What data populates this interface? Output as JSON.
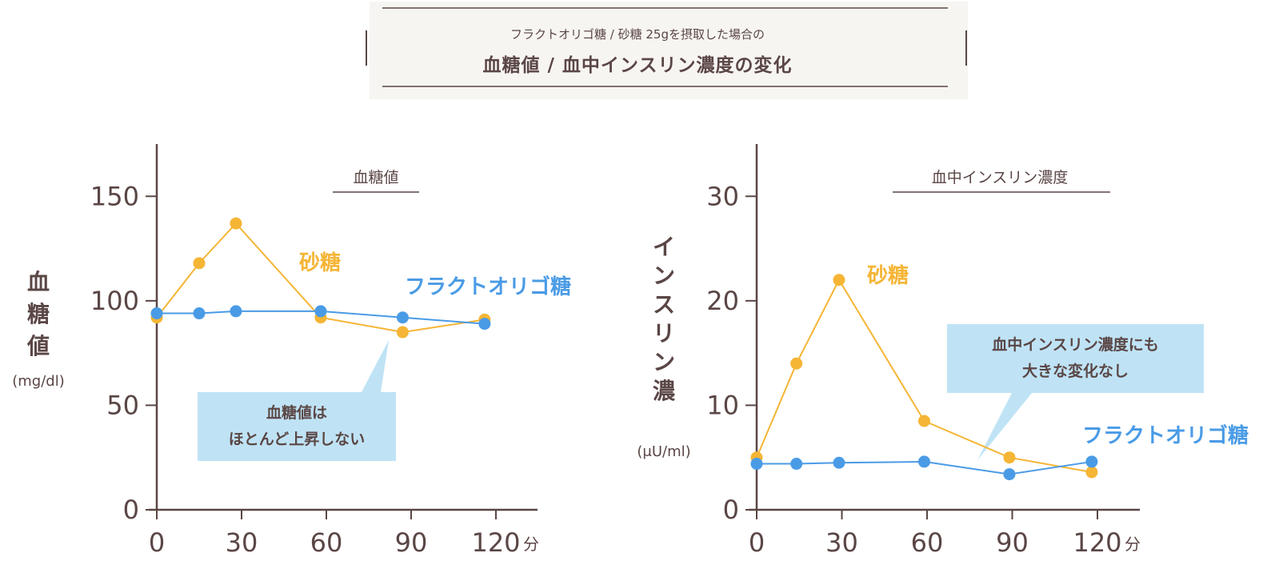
{
  "header": {
    "subtitle": "フラクトオリゴ糖 / 砂糖 25gを摂取した場合の",
    "title": "血糖値 / 血中インスリン濃度の変化"
  },
  "colors": {
    "sugar": "#f5b535",
    "fos": "#4a9be6",
    "axis": "#5a4645",
    "callout": "#bfe3f5"
  },
  "chart_data": [
    {
      "type": "line",
      "title": "血糖値",
      "ylabel": "血糖値",
      "yunit": "(mg/dl)",
      "x_unit": "分",
      "x_ticks": [
        0,
        30,
        60,
        90,
        120
      ],
      "y_ticks": [
        0,
        50,
        100,
        150
      ],
      "xlim": [
        0,
        120
      ],
      "ylim": [
        0,
        175
      ],
      "series": [
        {
          "name": "砂糖",
          "color": "#f5b535",
          "x": [
            0,
            15,
            28,
            58,
            87,
            116
          ],
          "y": [
            92,
            118,
            137,
            92,
            85,
            91
          ]
        },
        {
          "name": "フラクトオリゴ糖",
          "color": "#4a9be6",
          "x": [
            0,
            15,
            28,
            58,
            87,
            116
          ],
          "y": [
            94,
            94,
            95,
            95,
            92,
            89
          ]
        }
      ],
      "callout": [
        "血糖値は",
        "ほとんど上昇しない"
      ]
    },
    {
      "type": "line",
      "title": "血中インスリン濃度",
      "ylabel": "インスリン濃度",
      "yunit": "(μU/ml)",
      "x_unit": "分",
      "x_ticks": [
        0,
        30,
        60,
        90,
        120
      ],
      "y_ticks": [
        0,
        10,
        20,
        30
      ],
      "xlim": [
        0,
        120
      ],
      "ylim": [
        0,
        35
      ],
      "series": [
        {
          "name": "砂糖",
          "color": "#f5b535",
          "x": [
            0,
            14,
            29,
            59,
            89,
            118
          ],
          "y": [
            5,
            14,
            22,
            8.5,
            5,
            3.6
          ]
        },
        {
          "name": "フラクトオリゴ糖",
          "color": "#4a9be6",
          "x": [
            0,
            14,
            29,
            59,
            89,
            118
          ],
          "y": [
            4.4,
            4.4,
            4.5,
            4.6,
            3.4,
            4.6
          ]
        }
      ],
      "callout": [
        "血中インスリン濃度にも",
        "大きな変化なし"
      ]
    }
  ]
}
